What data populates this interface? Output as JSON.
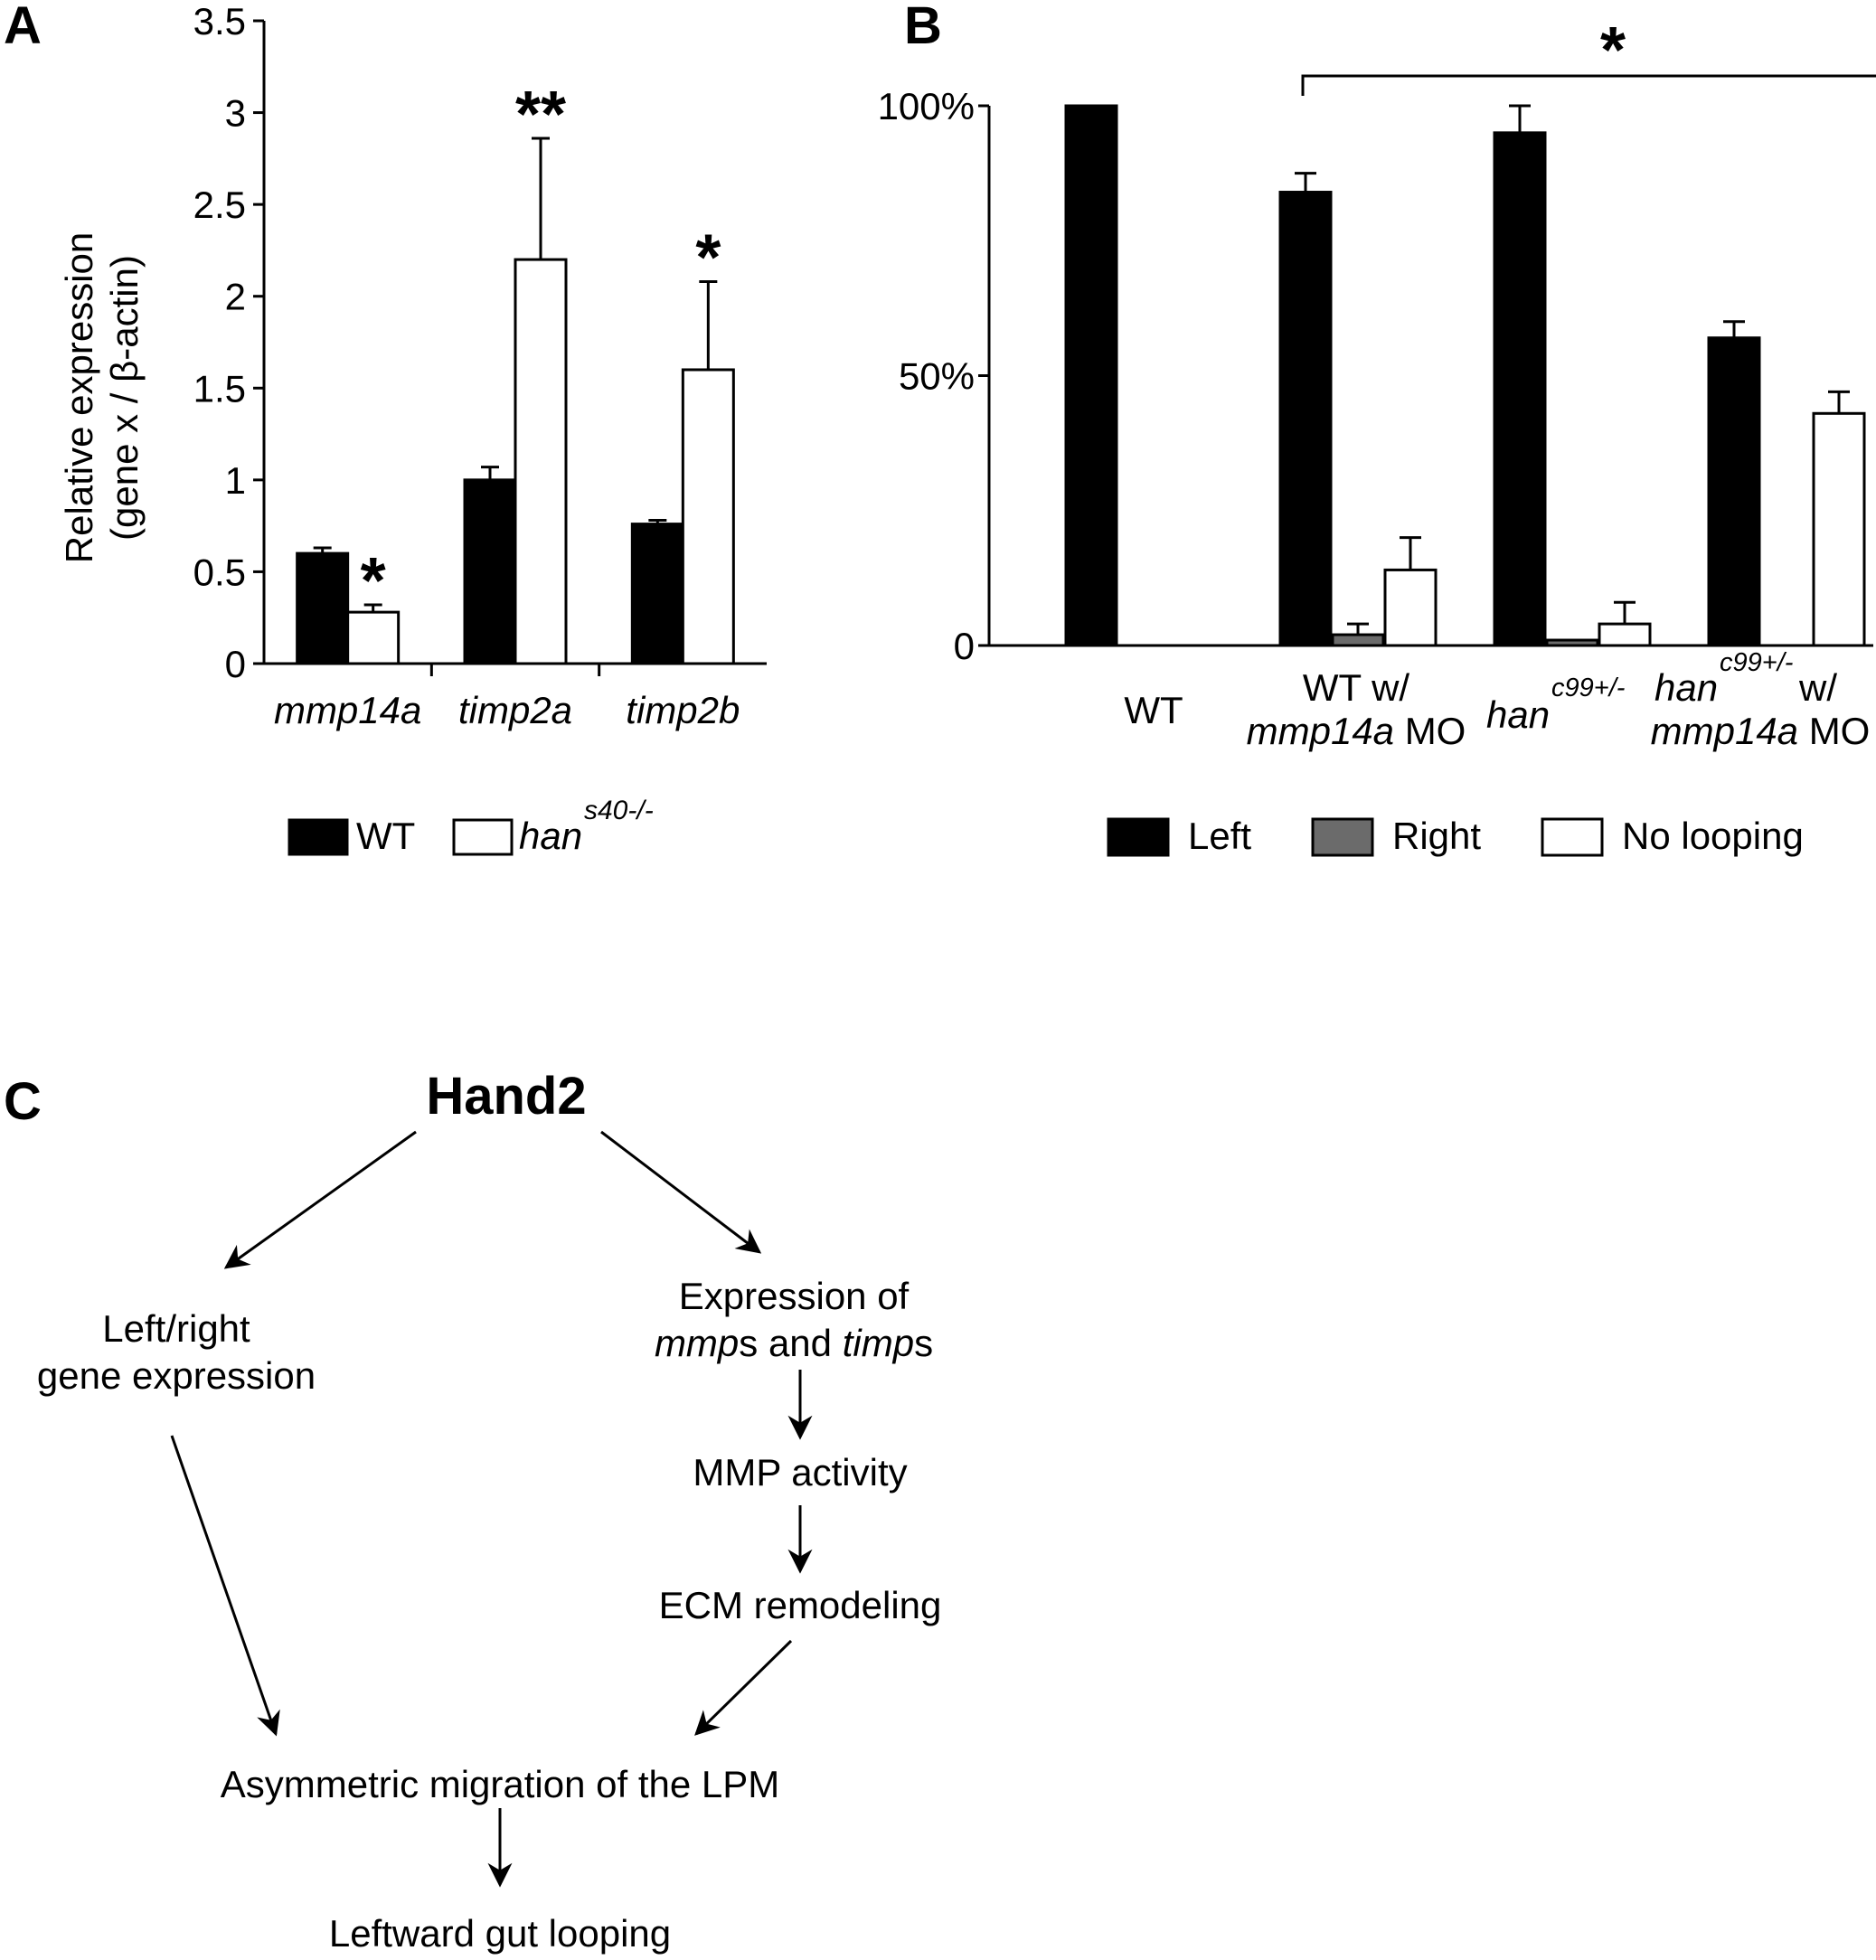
{
  "panel_labels": {
    "a": "A",
    "b": "B",
    "c": "C"
  },
  "chart_data": [
    {
      "type": "bar",
      "panel": "A",
      "ylabel_line1": "Relative expression",
      "ylabel_line2": "(gene x / β-actin)",
      "ylim": [
        0,
        3.5
      ],
      "yticks": [
        "0",
        "0.5",
        "1",
        "1.5",
        "2",
        "2.5",
        "3",
        "3.5"
      ],
      "categories": [
        "mmp14a",
        "timp2a",
        "timp2b"
      ],
      "series": [
        {
          "name": "WT",
          "color": "#000000",
          "values": [
            0.6,
            1.0,
            0.76
          ],
          "errors": [
            0.03,
            0.07,
            0.02
          ]
        },
        {
          "name": "han",
          "name_sup": "s40-/-",
          "color": "#ffffff",
          "values": [
            0.28,
            2.2,
            1.6
          ],
          "errors": [
            0.04,
            0.66,
            0.48
          ]
        }
      ],
      "significance": [
        "*",
        "**",
        "*"
      ],
      "legend": [
        {
          "label": "WT",
          "color": "#000000"
        },
        {
          "label": "han",
          "sup": "s40-/-",
          "color": "#ffffff"
        }
      ]
    },
    {
      "type": "bar",
      "panel": "B",
      "ylim": [
        0,
        100
      ],
      "yticks": [
        "0",
        "50%",
        "100%"
      ],
      "categories": [
        {
          "line1": "WT",
          "line2": ""
        },
        {
          "line1": "WT w/",
          "line2_it": "mmp14a",
          "line2_rest": " MO"
        },
        {
          "line1_it": "han",
          "line1_sup": "c99+/-"
        },
        {
          "line1_it": "han",
          "line1_sup": "c99+/-",
          "line1_rest": " w/",
          "line2_it": "mmp14a",
          "line2_rest": " MO"
        }
      ],
      "series": [
        {
          "name": "Left",
          "color": "#000000",
          "values": [
            100,
            84,
            95,
            57
          ],
          "errors": [
            0,
            3.5,
            5,
            3
          ]
        },
        {
          "name": "Right",
          "color": "#6b6b6b",
          "values": [
            0,
            2,
            1,
            0
          ],
          "errors": [
            0,
            2,
            0,
            0
          ]
        },
        {
          "name": "No looping",
          "color": "#ffffff",
          "values": [
            0,
            14,
            4,
            43
          ],
          "errors": [
            0,
            6,
            4,
            4
          ]
        }
      ],
      "significance_bracket": {
        "from": 1,
        "to": 3,
        "label": "*"
      },
      "legend": [
        "Left",
        "Right",
        "No looping"
      ]
    }
  ],
  "flowchart": {
    "root": "Hand2",
    "left_node_line1": "Left/right",
    "left_node_line2": "gene expression",
    "expr_line1": "Expression of",
    "expr_line2_it1": "mmp",
    "expr_line2_mid": "s and ",
    "expr_line2_it2": "timp",
    "expr_line2_end": "s",
    "mmp_activity": "MMP activity",
    "ecm": "ECM remodeling",
    "asym": "Asymmetric migration of the LPM",
    "gut": "Leftward gut looping"
  }
}
